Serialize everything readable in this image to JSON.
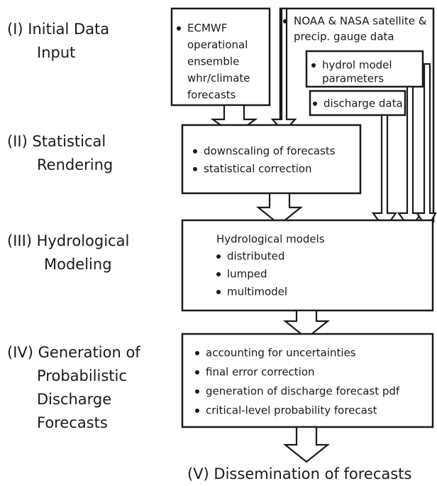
{
  "stages": [
    {
      "lines": [
        "(I)  Initial Data",
        "Input"
      ]
    },
    {
      "lines": [
        "(II)  Statistical",
        "Rendering"
      ]
    },
    {
      "lines": [
        "(III)  Hydrological",
        "Modeling"
      ]
    },
    {
      "lines": [
        "(IV)  Generation of",
        "Probabilistic",
        "Discharge",
        "Forecasts"
      ]
    }
  ],
  "final_stage": "(V) Dissemination of forecasts",
  "boxes": {
    "ecmwf": {
      "lines": [
        "ECMWF",
        "operational",
        "ensemble",
        "whr/climate",
        "forecasts"
      ]
    },
    "satellite": {
      "lines": [
        "NOAA & NASA satellite &",
        "precip. gauge data"
      ]
    },
    "model_parameters": {
      "lines": [
        "hydrol model",
        "parameters"
      ]
    },
    "discharge": {
      "lines": [
        "discharge data"
      ]
    },
    "statistical": {
      "lines": [
        "downscaling of forecasts",
        "statistical correction"
      ]
    },
    "hydrological": {
      "heading": "Hydrological models",
      "lines": [
        "distributed",
        "lumped",
        "multimodel"
      ]
    },
    "probabilistic": {
      "lines": [
        "accounting for uncertainties",
        "final error correction",
        "generation of discharge forecast pdf",
        "critical-level probability forecast"
      ]
    }
  }
}
